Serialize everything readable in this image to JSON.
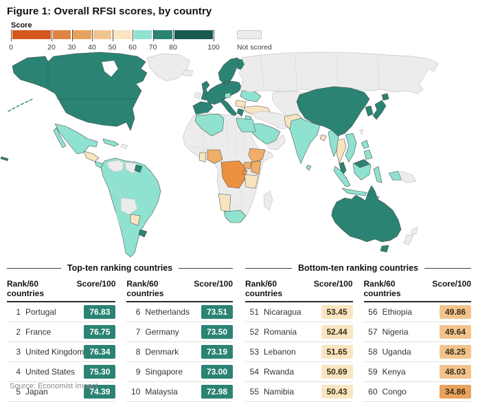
{
  "title": "Figure 1: Overall RFSI scores, by country",
  "legend": {
    "label": "Score",
    "ticks": [
      0,
      20,
      30,
      40,
      50,
      60,
      70,
      80,
      100
    ],
    "segments": [
      {
        "from": 0,
        "to": 20,
        "color": "#d4571c"
      },
      {
        "from": 20,
        "to": 30,
        "color": "#e08341"
      },
      {
        "from": 30,
        "to": 40,
        "color": "#e9a25e"
      },
      {
        "from": 40,
        "to": 50,
        "color": "#f2c48d"
      },
      {
        "from": 50,
        "to": 60,
        "color": "#f9e6c1"
      },
      {
        "from": 60,
        "to": 70,
        "color": "#8fe2d0"
      },
      {
        "from": 70,
        "to": 80,
        "color": "#2b8374"
      },
      {
        "from": 80,
        "to": 100,
        "color": "#17584f"
      }
    ],
    "not_scored_label": "Not scored",
    "not_scored_color": "#ececec"
  },
  "map": {
    "colors": {
      "teal_dark": "#2b8374",
      "teal_light": "#8fe2d0",
      "cream": "#f8e5c0",
      "orange_light": "#f0ae68",
      "orange_mid": "#eb9a4d",
      "orange_strong": "#ec9140",
      "not_scored": "#ececec"
    },
    "regions": {
      "canada-usa": "teal_dark",
      "hawaii": "teal_dark",
      "greenland": "not_scored",
      "iceland": "not_scored",
      "mexico": "teal_light",
      "baja": "teal_light",
      "central-america-north": "cream",
      "central-america-south": "teal_light",
      "cuba": "teal_light",
      "hispaniola": "not_scored",
      "south-america": "teal_light",
      "venezuela": "not_scored",
      "guyanas": "not_scored",
      "french-guiana": "teal_dark",
      "bolivia": "not_scored",
      "paraguay": "cream",
      "uruguay": "teal_dark",
      "uk": "teal_dark",
      "ireland": "not_scored",
      "iberia": "teal_dark",
      "europe-central": "teal_dark",
      "italy": "teal_dark",
      "sicily": "teal_dark",
      "greece": "teal_dark",
      "scandinavia": "teal_dark",
      "finland": "teal_dark",
      "denmark": "teal_dark",
      "alpine-patch": "teal_light",
      "ukraine": "teal_light",
      "romania": "cream",
      "turkey": "cream",
      "russia": "not_scored",
      "kazakhstan-central-asia": "not_scored",
      "mongolia": "not_scored",
      "middle-east": "not_scored",
      "israel-jordan": "teal_light",
      "saudi-arabia": "teal_light",
      "yemen-oman": "not_scored",
      "africa": "not_scored",
      "algeria": "teal_light",
      "egypt": "teal_light",
      "nigeria": "orange_light",
      "ghana": "cream",
      "drc": "orange_strong",
      "ethiopia": "orange_light",
      "uganda": "orange_light",
      "kenya": "orange_light",
      "rwanda": "orange_mid",
      "tanzania": "cream",
      "namibia": "cream",
      "south-africa": "teal_light",
      "madagascar": "not_scored",
      "india": "teal_light",
      "pakistan": "cream",
      "sri-lanka": "teal_light",
      "bangladesh": "cream",
      "myanmar": "teal_light",
      "thailand": "cream",
      "vietnam": "teal_light",
      "malaysia-peninsula": "teal_dark",
      "singapore": "teal_dark",
      "china": "teal_dark",
      "korea": "teal_dark",
      "japan": "teal_dark",
      "hokkaido": "teal_dark",
      "taiwan": "not_scored",
      "philippines-north": "teal_light",
      "philippines-south": "teal_light",
      "borneo": "teal_light",
      "east-malaysia": "teal_dark",
      "sumatra": "teal_light",
      "java": "teal_light",
      "sulawesi": "teal_light",
      "lesser-sunda": "teal_light",
      "west-papua": "teal_light",
      "new-guinea": "not_scored",
      "australia": "teal_dark",
      "tasmania": "teal_dark",
      "new-zealand-north": "not_scored",
      "new-zealand-south": "not_scored"
    }
  },
  "chart_data": {
    "type": "heatmap",
    "title": "Figure 1: Overall RFSI scores, by country",
    "legend_title": "Score",
    "scale_breaks": [
      0,
      20,
      30,
      40,
      50,
      60,
      70,
      80,
      100
    ],
    "not_scored_label": "Not scored",
    "top_ten": [
      {
        "rank": 1,
        "country": "Portugal",
        "score": 76.83
      },
      {
        "rank": 2,
        "country": "France",
        "score": 76.75
      },
      {
        "rank": 3,
        "country": "United Kingdom",
        "score": 76.34
      },
      {
        "rank": 4,
        "country": "United States",
        "score": 75.3
      },
      {
        "rank": 5,
        "country": "Japan",
        "score": 74.39
      },
      {
        "rank": 6,
        "country": "Netherlands",
        "score": 73.51
      },
      {
        "rank": 7,
        "country": "Germany",
        "score": 73.5
      },
      {
        "rank": 8,
        "country": "Denmark",
        "score": 73.19
      },
      {
        "rank": 9,
        "country": "Singapore",
        "score": 73.0
      },
      {
        "rank": 10,
        "country": "Malaysia",
        "score": 72.98
      }
    ],
    "bottom_ten": [
      {
        "rank": 51,
        "country": "Nicaragua",
        "score": 53.45
      },
      {
        "rank": 52,
        "country": "Romania",
        "score": 52.44
      },
      {
        "rank": 53,
        "country": "Lebanon",
        "score": 51.65
      },
      {
        "rank": 54,
        "country": "Rwanda",
        "score": 50.69
      },
      {
        "rank": 55,
        "country": "Namibia",
        "score": 50.43
      },
      {
        "rank": 56,
        "country": "Ethiopia",
        "score": 49.86
      },
      {
        "rank": 57,
        "country": "Nigeria",
        "score": 49.64
      },
      {
        "rank": 58,
        "country": "Uganda",
        "score": 48.25
      },
      {
        "rank": 59,
        "country": "Kenya",
        "score": 48.03
      },
      {
        "rank": 60,
        "country": "Congo",
        "score": 34.86
      }
    ]
  },
  "tables": {
    "rank_header": "Rank/60 countries",
    "score_header": "Score/100",
    "top": {
      "title": "Top-ten ranking countries",
      "rows": [
        {
          "rank": "1",
          "country": "Portugal",
          "score": "76.83"
        },
        {
          "rank": "2",
          "country": "France",
          "score": "76.75"
        },
        {
          "rank": "3",
          "country": "United Kingdom",
          "score": "76.34"
        },
        {
          "rank": "4",
          "country": "United States",
          "score": "75.30"
        },
        {
          "rank": "5",
          "country": "Japan",
          "score": "74.39"
        },
        {
          "rank": "6",
          "country": "Netherlands",
          "score": "73.51"
        },
        {
          "rank": "7",
          "country": "Germany",
          "score": "73.50"
        },
        {
          "rank": "8",
          "country": "Denmark",
          "score": "73.19"
        },
        {
          "rank": "9",
          "country": "Singapore",
          "score": "73.00"
        },
        {
          "rank": "10",
          "country": "Malaysia",
          "score": "72.98"
        }
      ]
    },
    "bottom": {
      "title": "Bottom-ten ranking countries",
      "rows": [
        {
          "rank": "51",
          "country": "Nicaragua",
          "score": "53.45"
        },
        {
          "rank": "52",
          "country": "Romania",
          "score": "52.44"
        },
        {
          "rank": "53",
          "country": "Lebanon",
          "score": "51.65"
        },
        {
          "rank": "54",
          "country": "Rwanda",
          "score": "50.69"
        },
        {
          "rank": "55",
          "country": "Namibia",
          "score": "50.43"
        },
        {
          "rank": "56",
          "country": "Ethiopia",
          "score": "49.86"
        },
        {
          "rank": "57",
          "country": "Nigeria",
          "score": "49.64"
        },
        {
          "rank": "58",
          "country": "Uganda",
          "score": "48.25"
        },
        {
          "rank": "59",
          "country": "Kenya",
          "score": "48.03"
        },
        {
          "rank": "60",
          "country": "Congo",
          "score": "34.86"
        }
      ]
    }
  },
  "source": "Source: Economist Impact"
}
